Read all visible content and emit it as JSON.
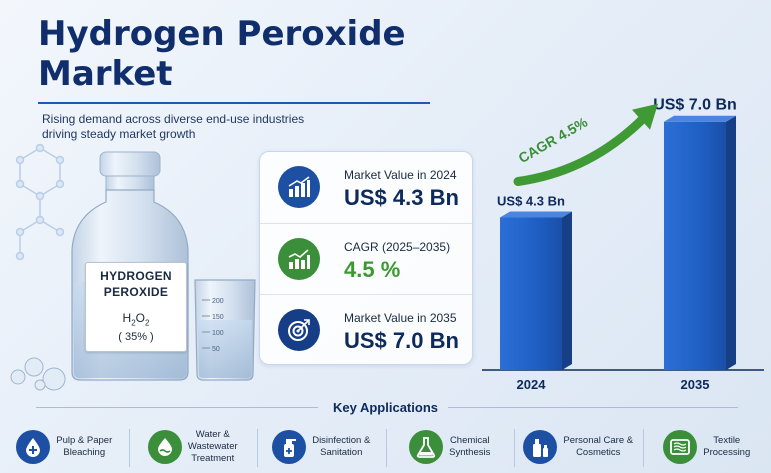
{
  "title_lines": [
    "Hydrogen Peroxide",
    "Market"
  ],
  "subtitle": "Rising demand across diverse end-use industries driving steady market growth",
  "bottle_label": {
    "line1": "HYDROGEN",
    "line2": "PEROXIDE",
    "formula_base": "H",
    "formula_sub1": "2",
    "formula_mid": "O",
    "formula_sub2": "2",
    "concentration": "( 35% )"
  },
  "beaker_marks": [
    "200",
    "150",
    "100",
    "50"
  ],
  "stats": [
    {
      "label": "Market Value in 2024",
      "value": "US$ 4.3 Bn",
      "icon": "bar-chart-rising-icon",
      "color": "#1d4fa3"
    },
    {
      "label": "CAGR (2025–2035)",
      "value": "4.5 %",
      "icon": "growth-chart-icon",
      "color": "#3b8f3a"
    },
    {
      "label": "Market Value in 2035",
      "value": "US$ 7.0 Bn",
      "icon": "target-icon",
      "color": "#163e86"
    }
  ],
  "chart_data": {
    "type": "bar",
    "categories": [
      "2024",
      "2035"
    ],
    "values": [
      4.3,
      7.0
    ],
    "unit": "US$ Bn",
    "data_labels": [
      "US$ 4.3 Bn",
      "US$ 7.0 Bn"
    ],
    "annotation": "CAGR 4.5%",
    "ylim": [
      0,
      7.5
    ],
    "bar_color": "#1f5fc4",
    "arrow_color": "#3f9a35",
    "grid": false,
    "title": "",
    "xlabel": "",
    "ylabel": ""
  },
  "applications_title": "Key Applications",
  "applications": [
    {
      "lines": [
        "Pulp & Paper",
        "Bleaching"
      ],
      "icon": "water-drop-icon",
      "color": "#1d4fa3"
    },
    {
      "lines": [
        "Water &",
        "Wastewater",
        "Treatment"
      ],
      "icon": "water-treatment-icon",
      "color": "#3b8f3a"
    },
    {
      "lines": [
        "Disinfection &",
        "Sanitation"
      ],
      "icon": "spray-bottle-icon",
      "color": "#1d4fa3"
    },
    {
      "lines": [
        "Chemical",
        "Synthesis"
      ],
      "icon": "flask-icon",
      "color": "#3b8f3a"
    },
    {
      "lines": [
        "Personal Care &",
        "Cosmetics"
      ],
      "icon": "cosmetics-icon",
      "color": "#1d4fa3"
    },
    {
      "lines": [
        "Textile",
        "Processing"
      ],
      "icon": "textile-icon",
      "color": "#3b8f3a"
    }
  ]
}
